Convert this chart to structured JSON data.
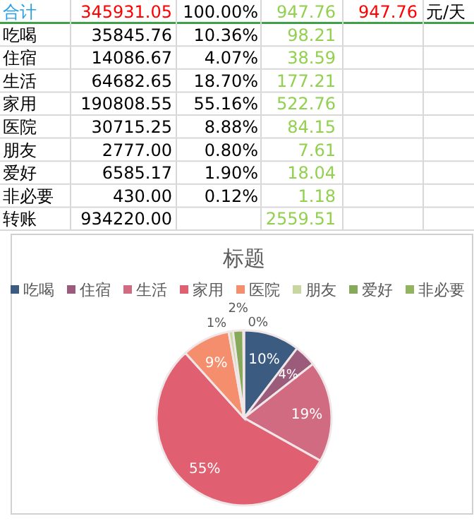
{
  "chart_data": [
    {
      "type": "other",
      "categories": [
        "合计",
        "吃喝",
        "住宿",
        "生活",
        "家用",
        "医院",
        "朋友",
        "爱好",
        "非必要",
        "转账"
      ],
      "series": [
        {
          "values": [
            345931.05,
            35845.76,
            14086.67,
            64682.65,
            190808.55,
            30715.25,
            2777.0,
            6585.17,
            430.0,
            934220.0
          ],
          "colors": [
            "#ff0000",
            "#000000",
            "#000000",
            "#000000",
            "#000000",
            "#000000",
            "#000000",
            "#000000",
            "#000000",
            "#000000"
          ],
          "value_labels": [
            "345931.05",
            "35845.76",
            "14086.67",
            "64682.65",
            "190808.55",
            "30715.25",
            "2777.00",
            "6585.17",
            "430.00",
            "934220.00"
          ]
        },
        {
          "values": [
            100.0,
            10.36,
            4.07,
            18.7,
            55.16,
            8.88,
            0.8,
            1.9,
            0.12,
            null
          ],
          "colors": [
            "#000000",
            "#000000",
            "#000000",
            "#000000",
            "#000000",
            "#000000",
            "#000000",
            "#000000",
            "#000000",
            "#000000"
          ],
          "value_labels": [
            "100.00%",
            "10.36%",
            "4.07%",
            "18.70%",
            "55.16%",
            "8.88%",
            "0.80%",
            "1.90%",
            "0.12%",
            null
          ]
        },
        {
          "values": [
            947.76,
            98.21,
            38.59,
            177.21,
            522.76,
            84.15,
            7.61,
            18.04,
            1.18,
            2559.51
          ],
          "colors": [
            "#92d050",
            "#92d050",
            "#92d050",
            "#92d050",
            "#92d050",
            "#92d050",
            "#92d050",
            "#92d050",
            "#92d050",
            "#92d050"
          ],
          "value_labels": [
            "947.76",
            "98.21",
            "38.59",
            "177.21",
            "522.76",
            "84.15",
            "7.61",
            "18.04",
            "1.18",
            "2559.51"
          ]
        }
      ],
      "annotations": [
        "947.76",
        "元/天"
      ]
    },
    {
      "type": "pie",
      "title": "标题",
      "legend": "top",
      "categories": [
        "吃喝",
        "住宿",
        "生活",
        "家用",
        "医院",
        "朋友",
        "爱好",
        "非必要"
      ],
      "values": [
        10.36,
        4.07,
        18.7,
        55.16,
        8.88,
        0.8,
        1.9,
        0.12
      ],
      "colors": [
        "#3b5b80",
        "#9b5b7b",
        "#d06b82",
        "#e05f70",
        "#f58e6c",
        "#c8d6a0",
        "#86a95a",
        "#93b45e"
      ],
      "value_labels": [
        "10%",
        "4%",
        "19%",
        "55%",
        "9%",
        "1%",
        "2%",
        "0%"
      ]
    }
  ]
}
